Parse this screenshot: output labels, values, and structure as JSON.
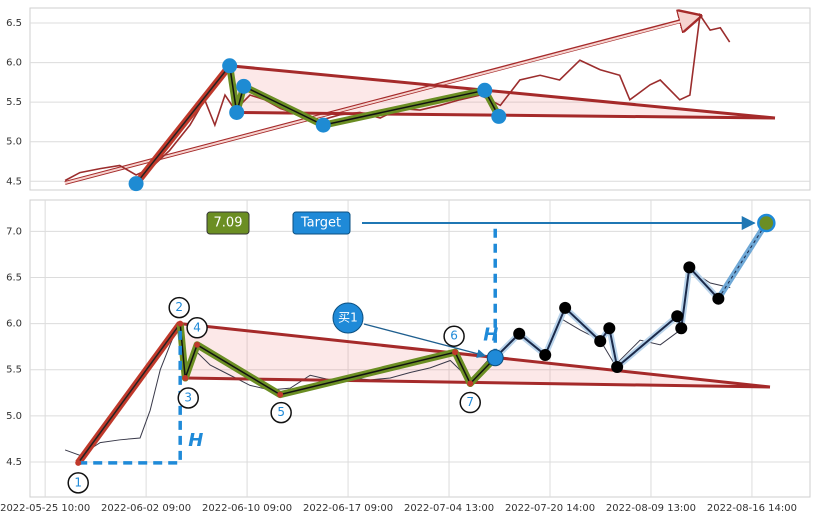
{
  "chart_data": [
    {
      "type": "line",
      "ylim": [
        4.39,
        6.69
      ],
      "yticks": [
        4.5,
        {
          "value": 5,
          "label": "5.0"
        },
        5.5,
        {
          "value": 6,
          "label": "6.0"
        },
        6.5
      ],
      "xlim": [
        0,
        100
      ],
      "grid": true,
      "series": [
        {
          "color": "#9b2d2d",
          "x": [
            4.5,
            6.4,
            9,
            11.5,
            13.6,
            15.4,
            17.9,
            20.5,
            22.4,
            23.7,
            25,
            26.3,
            28.2,
            30.1,
            32.1,
            34.6,
            37.2,
            39.7,
            42.3,
            44.9,
            47.4,
            50,
            52.6,
            55.1,
            57.7,
            60.3,
            62.8,
            65.4,
            67.9,
            70.5,
            73.1,
            75.6,
            76.9,
            79.5,
            80.8,
            83.3,
            84.6,
            85.9,
            87.2,
            88.5,
            89.7
          ],
          "values": [
            4.51,
            4.61,
            4.66,
            4.7,
            4.58,
            4.66,
            4.89,
            5.21,
            5.53,
            5.21,
            5.59,
            5.4,
            5.59,
            5.53,
            5.42,
            5.34,
            5.27,
            5.34,
            5.37,
            5.3,
            5.42,
            5.4,
            5.46,
            5.53,
            5.59,
            5.46,
            5.78,
            5.84,
            5.78,
            6.03,
            5.91,
            5.84,
            5.53,
            5.72,
            5.78,
            5.53,
            5.59,
            6.6,
            6.41,
            6.44,
            6.26
          ]
        },
        {
          "color": "#1e8bd3",
          "x": [
            13.6,
            25.6,
            26.5,
            27.4,
            37.6,
            58.3,
            60.1
          ],
          "values": [
            4.47,
            5.96,
            5.37,
            5.7,
            5.21,
            5.65,
            5.32
          ]
        }
      ]
    },
    {
      "type": "line",
      "ylim": [
        4.12,
        7.34
      ],
      "yticks": [
        4.5,
        {
          "value": 5,
          "label": "5.0"
        },
        5.5,
        {
          "value": 6,
          "label": "6.0"
        },
        6.5,
        {
          "value": 7,
          "label": "7.0"
        }
      ],
      "xlim": [
        -6,
        303
      ],
      "xticks": [
        {
          "value": 0,
          "label": "2022-05-25 10:00"
        },
        {
          "value": 40,
          "label": "2022-06-02 09:00"
        },
        {
          "value": 80,
          "label": "2022-06-10 09:00"
        },
        {
          "value": 120,
          "label": "2022-06-17 09:00"
        },
        {
          "value": 160,
          "label": "2022-07-04 13:00"
        },
        {
          "value": 200,
          "label": "2022-07-20 14:00"
        },
        {
          "value": 240,
          "label": "2022-08-09 13:00"
        },
        {
          "value": 280,
          "label": "2022-08-16 14:00"
        }
      ],
      "grid": true,
      "series": [
        {
          "color": "#3a3a4a",
          "x": [
            7.9,
            13.9,
            21.8,
            29.7,
            37.6,
            41.6,
            45.6,
            49.5,
            52.7,
            55.5,
            59.4,
            65.4,
            73.3,
            81.2,
            89.1,
            97.1,
            105,
            112.9,
            120.8,
            128.8,
            136.7,
            144.6,
            152.5,
            160.5,
            168.4,
            176.3,
            188.1,
            198.1,
            204,
            212,
            219.9,
            225.8,
            235.7,
            243.7,
            251.6,
            255.6,
            263.5,
            271.4
          ],
          "values": [
            4.63,
            4.57,
            4.71,
            4.74,
            4.76,
            5.06,
            5.5,
            5.77,
            5.98,
            5.44,
            5.71,
            5.55,
            5.44,
            5.33,
            5.28,
            5.3,
            5.44,
            5.39,
            5.41,
            5.39,
            5.41,
            5.47,
            5.52,
            5.6,
            5.39,
            5.63,
            5.87,
            5.69,
            6.06,
            5.93,
            5.82,
            5.55,
            5.82,
            5.77,
            5.93,
            6.58,
            6.44,
            6.39
          ]
        },
        {
          "color": "#6b8e23",
          "x": [
            13.1,
            53.5,
            55.5,
            60.2,
            93.1,
            162.4,
            168.4
          ],
          "values": [
            4.49,
            6.0,
            5.41,
            5.77,
            5.23,
            5.69,
            5.35
          ],
          "point_labels": [
            "1",
            "2",
            "3",
            "4",
            "5",
            "6",
            "7"
          ]
        },
        {
          "color": "#000000",
          "x": [
            187.8,
            198.1,
            206,
            219.9,
            223.5,
            226.6,
            250.4,
            252,
            255.2,
            266.7
          ],
          "values": [
            5.89,
            5.66,
            6.17,
            5.81,
            5.95,
            5.53,
            6.08,
            5.95,
            6.61,
            6.27
          ]
        }
      ],
      "breakout": {
        "label": "买1",
        "x": 178.3,
        "value": 5.63
      },
      "target": {
        "label": "Target",
        "x": 285.7,
        "value": 7.09
      },
      "h_labels": [
        "H",
        "H"
      ]
    }
  ]
}
